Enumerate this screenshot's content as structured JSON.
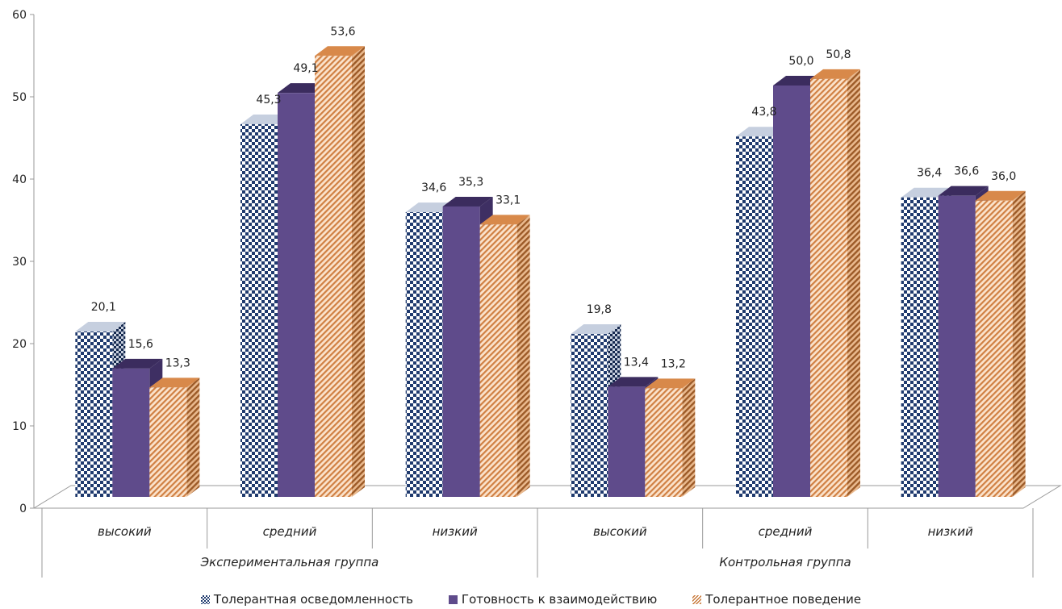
{
  "chart_data": {
    "type": "bar",
    "title": "",
    "xlabel": "",
    "ylabel": "",
    "ylim": [
      0,
      60
    ],
    "yticks": [
      "0",
      "10",
      "20",
      "30",
      "40",
      "50",
      "60"
    ],
    "groups": [
      {
        "label": "Экспериментальная группа",
        "categories": [
          "высокий",
          "средний",
          "низкий"
        ]
      },
      {
        "label": "Контрольная группа",
        "categories": [
          "высокий",
          "средний",
          "низкий"
        ]
      }
    ],
    "categories": [
      "высокий",
      "средний",
      "низкий",
      "высокий",
      "средний",
      "низкий"
    ],
    "series": [
      {
        "name": "Толерантная осведомленность",
        "color": "#1f3a6e",
        "pattern": "checker",
        "values": [
          20.1,
          45.3,
          34.6,
          19.8,
          43.8,
          36.4
        ],
        "labels": [
          "20,1",
          "45,3",
          "34,6",
          "19,8",
          "43,8",
          "36,4"
        ]
      },
      {
        "name": "Готовность к взаимодействию",
        "color": "#5f4b8b",
        "pattern": "solid",
        "values": [
          15.6,
          49.1,
          35.3,
          13.4,
          50.0,
          36.6
        ],
        "labels": [
          "15,6",
          "49,1",
          "35,3",
          "13,4",
          "50,0",
          "36,6"
        ]
      },
      {
        "name": "Толерантное поведение",
        "color": "#c8793a",
        "pattern": "diagonal",
        "values": [
          13.3,
          53.6,
          33.1,
          13.2,
          50.8,
          36.0
        ],
        "labels": [
          "13,3",
          "53,6",
          "33,1",
          "13,2",
          "50,8",
          "36,0"
        ]
      }
    ],
    "legend_position": "bottom",
    "grid": false
  }
}
